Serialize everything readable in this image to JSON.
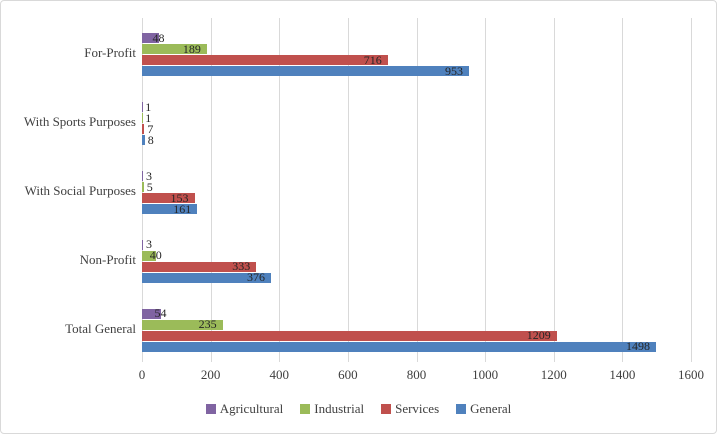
{
  "chart_data": {
    "type": "bar",
    "orientation": "horizontal",
    "title": "",
    "xlabel": "",
    "ylabel": "",
    "categories": [
      "For-Profit",
      "With Sports Purposes",
      "With Social Purposes",
      "Non-Profit",
      "Total General"
    ],
    "series": [
      {
        "name": "Agricultural",
        "color": "#8064A2",
        "values": [
          48,
          1,
          3,
          3,
          54
        ]
      },
      {
        "name": "Industrial",
        "color": "#9BBB59",
        "values": [
          189,
          1,
          5,
          40,
          235
        ]
      },
      {
        "name": "Services",
        "color": "#C0504D",
        "values": [
          716,
          7,
          153,
          333,
          1209
        ]
      },
      {
        "name": "General",
        "color": "#4F81BD",
        "values": [
          953,
          8,
          161,
          376,
          1498
        ]
      }
    ],
    "xlim": [
      0,
      1600
    ],
    "xticks": [
      0,
      200,
      400,
      600,
      800,
      1000,
      1200,
      1400,
      1600
    ],
    "grid": true,
    "legend_position": "bottom",
    "gridline_color": "#d9d9d9",
    "label_color": "#262626",
    "axis_text_color": "#404040"
  }
}
